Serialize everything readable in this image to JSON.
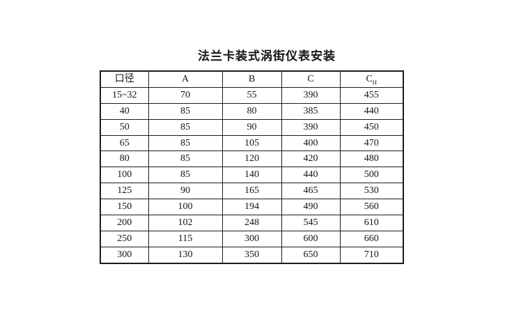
{
  "document": {
    "title": "法兰卡装式涡街仪表安装",
    "background_color": "#ffffff",
    "text_color": "#151515",
    "border_color": "#1c1c1c"
  },
  "table": {
    "columns": [
      {
        "label": "口径"
      },
      {
        "label": "A"
      },
      {
        "label": "B"
      },
      {
        "label": "C"
      },
      {
        "label": "C",
        "sub": "H"
      }
    ],
    "rows": [
      [
        "15~32",
        "70",
        "55",
        "390",
        "455"
      ],
      [
        "40",
        "85",
        "80",
        "385",
        "440"
      ],
      [
        "50",
        "85",
        "90",
        "390",
        "450"
      ],
      [
        "65",
        "85",
        "105",
        "400",
        "470"
      ],
      [
        "80",
        "85",
        "120",
        "420",
        "480"
      ],
      [
        "100",
        "85",
        "140",
        "440",
        "500"
      ],
      [
        "125",
        "90",
        "165",
        "465",
        "530"
      ],
      [
        "150",
        "100",
        "194",
        "490",
        "560"
      ],
      [
        "200",
        "102",
        "248",
        "545",
        "610"
      ],
      [
        "250",
        "115",
        "300",
        "600",
        "660"
      ],
      [
        "300",
        "130",
        "350",
        "650",
        "710"
      ]
    ]
  }
}
